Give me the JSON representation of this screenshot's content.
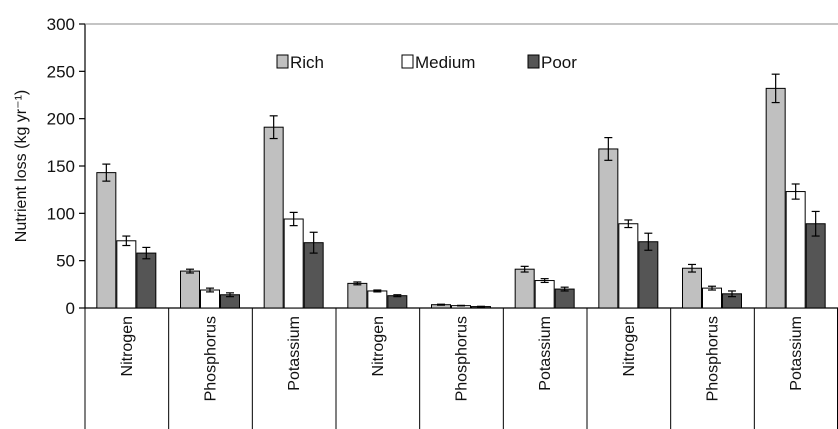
{
  "chart_data": {
    "type": "bar",
    "ylabel": "Nutrient loss (kg yr⁻¹)",
    "ylim": [
      0,
      300
    ],
    "yticks": [
      0,
      50,
      100,
      150,
      200,
      250,
      300
    ],
    "grid": false,
    "legend_position": "top-center",
    "categories": [
      "Nitrogen",
      "Phosphorus",
      "Potassium",
      "Nitrogen",
      "Phosphorus",
      "Potassium",
      "Nitrogen",
      "Phosphorus",
      "Potassium"
    ],
    "series": [
      {
        "name": "Rich",
        "color": "#c0c0c0",
        "values": [
          143,
          39,
          191,
          26,
          3.5,
          41,
          168,
          42,
          232
        ],
        "errors": [
          9,
          2,
          12,
          1.5,
          0.5,
          3,
          12,
          4,
          15
        ]
      },
      {
        "name": "Medium",
        "color": "#ffffff",
        "values": [
          71,
          19,
          94,
          18,
          2.5,
          29,
          89,
          21,
          123
        ],
        "errors": [
          5,
          2,
          7,
          1,
          0.3,
          2,
          4,
          2,
          8
        ]
      },
      {
        "name": "Poor",
        "color": "#555555",
        "values": [
          58,
          14,
          69,
          13,
          1.5,
          20,
          70,
          15,
          89
        ],
        "errors": [
          6,
          2,
          11,
          1,
          0.3,
          2,
          9,
          3,
          13
        ]
      }
    ]
  }
}
